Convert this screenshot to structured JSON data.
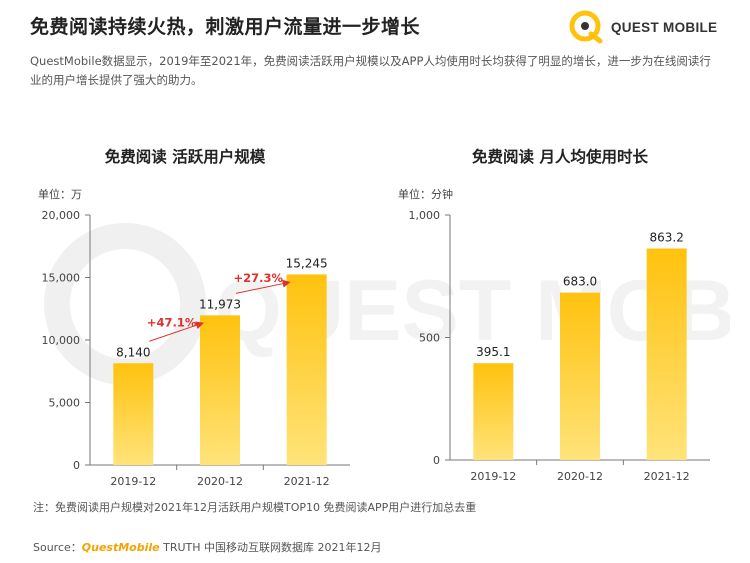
{
  "header": {
    "title": "免费阅读持续火热，刺激用户流量进一步增长",
    "logo_text": "QUEST MOBILE"
  },
  "intro": "QuestMobile数据显示，2019年至2021年，免费阅读活跃用户规模以及APP人均使用时长均获得了明显的增长，进一步为在线阅读行业的用户增长提供了强大的助力。",
  "watermark": "QUEST MOBILE",
  "colors": {
    "bar_top": "#ffc20e",
    "bar_bottom": "#ffe37a",
    "growth": "#e0312d",
    "brand": "#f5a300"
  },
  "chart_data": [
    {
      "type": "bar",
      "title": "免费阅读 活跃用户规模",
      "unit": "单位：万",
      "categories": [
        "2019-12",
        "2020-12",
        "2021-12"
      ],
      "values": [
        8140,
        11973,
        15245
      ],
      "value_labels": [
        "8,140",
        "11,973",
        "15,245"
      ],
      "ylim": [
        0,
        20000
      ],
      "yticks": [
        0,
        5000,
        10000,
        15000,
        20000
      ],
      "ytick_labels": [
        "0",
        "5,000",
        "10,000",
        "15,000",
        "20,000"
      ],
      "growth_annotations": [
        {
          "from": 0,
          "to": 1,
          "label": "+47.1%"
        },
        {
          "from": 1,
          "to": 2,
          "label": "+27.3%"
        }
      ],
      "grid": false
    },
    {
      "type": "bar",
      "title": "免费阅读 月人均使用时长",
      "unit": "单位：分钟",
      "categories": [
        "2019-12",
        "2020-12",
        "2021-12"
      ],
      "values": [
        395.1,
        683.0,
        863.2
      ],
      "value_labels": [
        "395.1",
        "683.0",
        "863.2"
      ],
      "ylim": [
        0,
        1000
      ],
      "yticks": [
        0,
        500,
        1000
      ],
      "ytick_labels": [
        "0",
        "500",
        "1,000"
      ],
      "grid": false
    }
  ],
  "footer": {
    "note": "注：免费阅读用户规模对2021年12月活跃用户规模TOP10 免费阅读APP用户进行加总去重",
    "source_prefix": "Source：",
    "source_brand": "QuestMobile",
    "source_rest": " TRUTH 中国移动互联网数据库 2021年12月"
  }
}
